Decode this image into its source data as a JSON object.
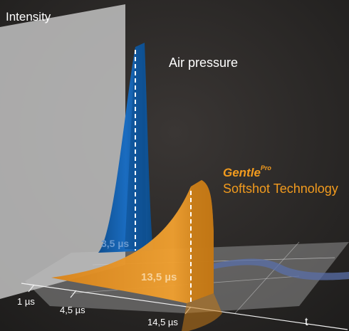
{
  "axes": {
    "y_label": "Intensity",
    "x_label": "t",
    "ticks": [
      "1 µs",
      "4,5 µs",
      "14,5 µs"
    ]
  },
  "pulses": {
    "air": {
      "label": "Air pressure",
      "duration": "3,5 µs",
      "color": "#1560a8"
    },
    "gentle": {
      "brand": "Gentle",
      "brand_sup": "Pro",
      "tagline": "Softshot Technology",
      "duration": "13,5 µs",
      "color": "#e89418"
    }
  },
  "colors": {
    "background": "#2b2b2b",
    "panel": "#b9b9b9",
    "floor": "#8e8e8e",
    "text": "#ffffff",
    "accent": "#f29b1e"
  }
}
